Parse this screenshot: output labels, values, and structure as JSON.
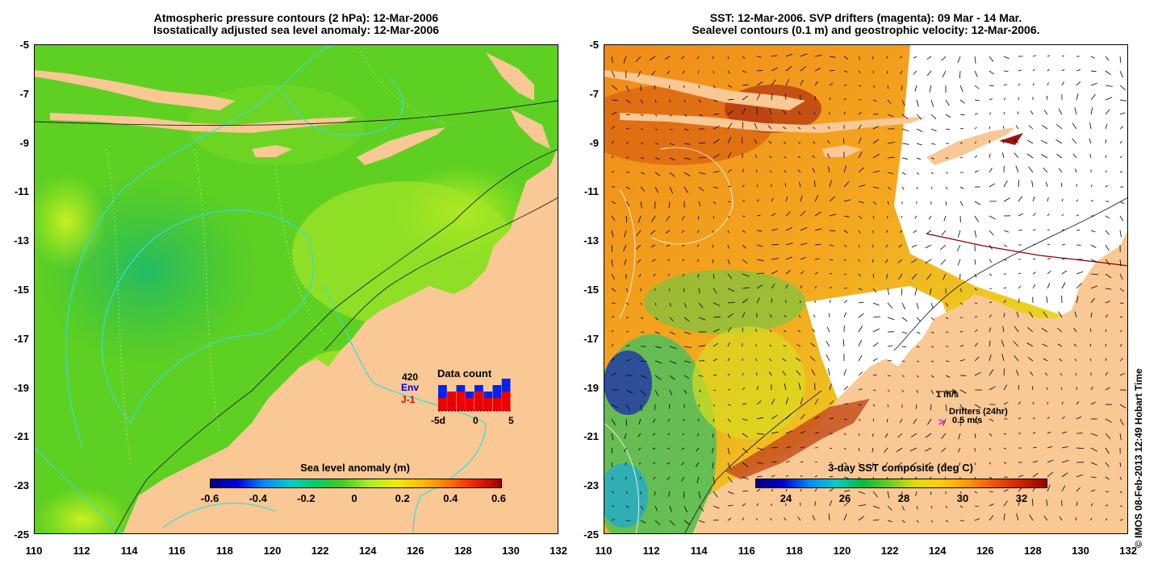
{
  "left_panel": {
    "title_line1": "Atmospheric pressure contours (2 hPa): 12-Mar-2006",
    "title_line2": "Isostatically adjusted sea level anomaly: 12-Mar-2006",
    "colorbar_label": "Sea level anomaly (m)",
    "colorbar_ticks": [
      "-0.6",
      "-0.4",
      "-0.2",
      "0",
      "0.2",
      "0.4",
      "0.6"
    ],
    "inset": {
      "count": "420",
      "label_env": "Env",
      "label_j1": "J-1",
      "title": "Data count",
      "ticks": [
        "-5d",
        "0",
        "5"
      ],
      "env_values": [
        4,
        3,
        4,
        3,
        4,
        3,
        4,
        5
      ],
      "j1_values": [
        2,
        3,
        3,
        2,
        3,
        2,
        2,
        3
      ]
    }
  },
  "right_panel": {
    "title_line1": "SST: 12-Mar-2006. SVP drifters (magenta): 09 Mar - 14 Mar.",
    "title_line2": "Sealevel contours (0.1 m) and geostrophic velocity: 12-Mar-2006.",
    "colorbar_label": "3-day SST composite (deg C)",
    "colorbar_ticks": [
      "24",
      "26",
      "28",
      "30",
      "32"
    ],
    "scale_arrow_label": "1 m/s",
    "drifters_label": "Drifters (24hr)",
    "drifters_arrow": ">",
    "drifters_speed": "0.5 m/s"
  },
  "axes": {
    "y_ticks": [
      "-5",
      "-7",
      "-9",
      "-11",
      "-13",
      "-15",
      "-17",
      "-19",
      "-21",
      "-23",
      "-25"
    ],
    "x_ticks": [
      "110",
      "112",
      "114",
      "116",
      "118",
      "120",
      "122",
      "124",
      "126",
      "128",
      "130",
      "132"
    ]
  },
  "copyright": "© IMOS 08-Feb-2013 12:49 Hobart Time",
  "colors": {
    "land": "#f9c895",
    "sla_green": "#44cc22",
    "sst_orange": "#f0a020"
  }
}
